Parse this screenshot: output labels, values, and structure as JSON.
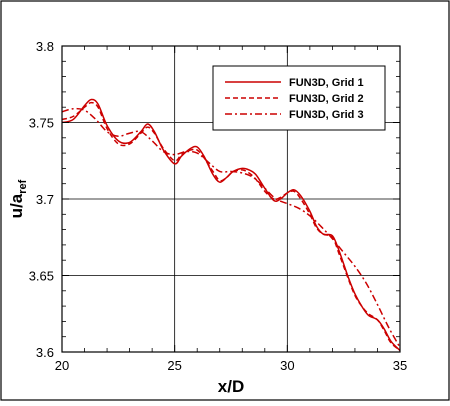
{
  "chart_data": {
    "type": "line",
    "title": "",
    "xlabel": "x/D",
    "ylabel": "u/a",
    "ylabel_subscript": "ref",
    "xlim": [
      20,
      35
    ],
    "ylim": [
      3.6,
      3.8
    ],
    "grid": true,
    "legend_position": "top-right",
    "x_ticks": [
      "20",
      "25",
      "30",
      "35"
    ],
    "y_ticks": [
      "3.6",
      "3.65",
      "3.7",
      "3.75",
      "3.8"
    ],
    "x_tick_values": [
      20,
      25,
      30,
      35
    ],
    "y_tick_values": [
      3.6,
      3.65,
      3.7,
      3.75,
      3.8
    ],
    "series": [
      {
        "name": "FUN3D, Grid 1",
        "style": "solid",
        "color": "#cc0000",
        "x": [
          20.0,
          20.5,
          21.0,
          21.3,
          21.6,
          22.0,
          22.5,
          23.0,
          23.5,
          23.8,
          24.1,
          24.5,
          25.0,
          25.3,
          25.7,
          26.0,
          26.3,
          26.7,
          27.0,
          27.3,
          27.6,
          28.0,
          28.3,
          28.6,
          29.0,
          29.4,
          29.7,
          30.0,
          30.3,
          30.6,
          31.0,
          31.3,
          31.6,
          32.0,
          32.3,
          32.7,
          33.0,
          33.3,
          33.6,
          34.0,
          34.3,
          34.6,
          35.0
        ],
        "y": [
          3.75,
          3.752,
          3.761,
          3.765,
          3.762,
          3.748,
          3.738,
          3.737,
          3.744,
          3.749,
          3.744,
          3.732,
          3.723,
          3.728,
          3.733,
          3.734,
          3.728,
          3.716,
          3.711,
          3.714,
          3.718,
          3.72,
          3.719,
          3.716,
          3.707,
          3.699,
          3.7,
          3.704,
          3.706,
          3.702,
          3.692,
          3.682,
          3.677,
          3.676,
          3.666,
          3.649,
          3.638,
          3.63,
          3.624,
          3.621,
          3.615,
          3.607,
          3.601
        ]
      },
      {
        "name": "FUN3D, Grid 2",
        "style": "dashed",
        "color": "#cc0000",
        "x": [
          20.0,
          20.5,
          21.0,
          21.3,
          21.6,
          22.0,
          22.5,
          23.0,
          23.5,
          23.8,
          24.1,
          24.5,
          25.0,
          25.3,
          25.7,
          26.0,
          26.3,
          26.7,
          27.0,
          27.3,
          27.6,
          28.0,
          28.3,
          28.6,
          29.0,
          29.4,
          29.7,
          30.0,
          30.3,
          30.6,
          31.0,
          31.3,
          31.6,
          32.0,
          32.3,
          32.7,
          33.0,
          33.3,
          33.6,
          34.0,
          34.3,
          34.6,
          35.0
        ],
        "y": [
          3.752,
          3.754,
          3.76,
          3.763,
          3.76,
          3.746,
          3.736,
          3.736,
          3.743,
          3.747,
          3.743,
          3.733,
          3.725,
          3.729,
          3.732,
          3.732,
          3.727,
          3.718,
          3.712,
          3.714,
          3.718,
          3.719,
          3.717,
          3.713,
          3.705,
          3.7,
          3.701,
          3.704,
          3.705,
          3.7,
          3.69,
          3.681,
          3.677,
          3.675,
          3.664,
          3.648,
          3.637,
          3.63,
          3.625,
          3.621,
          3.614,
          3.606,
          3.601
        ]
      },
      {
        "name": "FUN3D, Grid 3",
        "style": "dashdot",
        "color": "#cc0000",
        "x": [
          20.0,
          20.5,
          21.0,
          21.5,
          22.0,
          22.5,
          23.0,
          23.5,
          24.0,
          24.5,
          25.0,
          25.5,
          26.0,
          26.5,
          27.0,
          27.5,
          28.0,
          28.5,
          29.0,
          29.5,
          30.0,
          30.5,
          31.0,
          31.5,
          32.0,
          32.5,
          33.0,
          33.5,
          34.0,
          34.5,
          35.0
        ],
        "y": [
          3.757,
          3.759,
          3.758,
          3.752,
          3.744,
          3.741,
          3.743,
          3.744,
          3.738,
          3.731,
          3.729,
          3.731,
          3.73,
          3.724,
          3.718,
          3.718,
          3.717,
          3.714,
          3.707,
          3.7,
          3.697,
          3.694,
          3.689,
          3.682,
          3.674,
          3.665,
          3.656,
          3.645,
          3.631,
          3.616,
          3.603
        ]
      }
    ]
  }
}
